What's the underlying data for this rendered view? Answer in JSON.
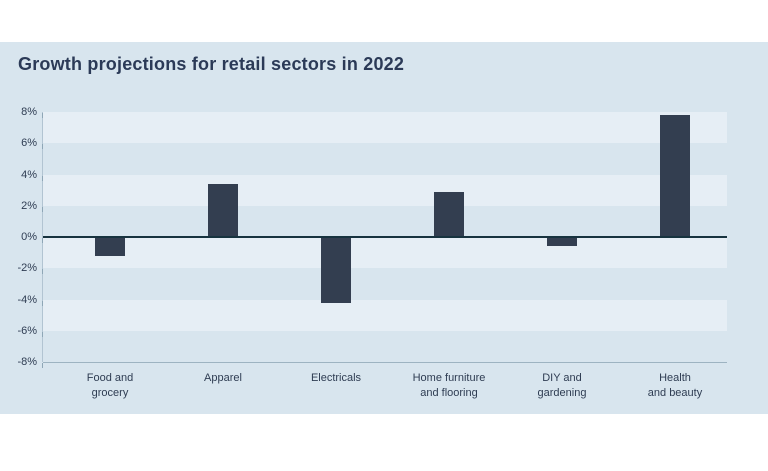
{
  "chart_data": {
    "type": "bar",
    "title": "Growth projections for retail sectors in 2022",
    "categories": [
      "Food and grocery",
      "Apparel",
      "Electricals",
      "Home furniture and flooring",
      "DIY and gardening",
      "Health and beauty"
    ],
    "category_lines": [
      [
        "Food and",
        "grocery"
      ],
      [
        "Apparel"
      ],
      [
        "Electricals"
      ],
      [
        "Home furniture",
        "and flooring"
      ],
      [
        "DIY and",
        "gardening"
      ],
      [
        "Health",
        "and beauty"
      ]
    ],
    "values": [
      -1.2,
      3.4,
      -4.2,
      2.9,
      -0.6,
      7.8
    ],
    "unit": "%",
    "ylim": [
      -8,
      8
    ],
    "ytick_step": 2,
    "ytick_labels": [
      "8%",
      "6%",
      "4%",
      "2%",
      "0%",
      "-2%",
      "-4%",
      "-6%",
      "-8%"
    ],
    "grid": "alternating horizontal bands, zero axis emphasized",
    "legend": "none",
    "colors": {
      "page_bg": "#ffffff",
      "panel_bg": "#d8e5ee",
      "band_light": "#e6eef5",
      "bar": "#333e50",
      "zero_line": "#17333f",
      "baseline": "#9db3c1",
      "yaxis_line": "#b2c4d2",
      "tick": "#8ea6b6",
      "title_text": "#2b3a57",
      "label_text": "#2e3c52"
    }
  }
}
